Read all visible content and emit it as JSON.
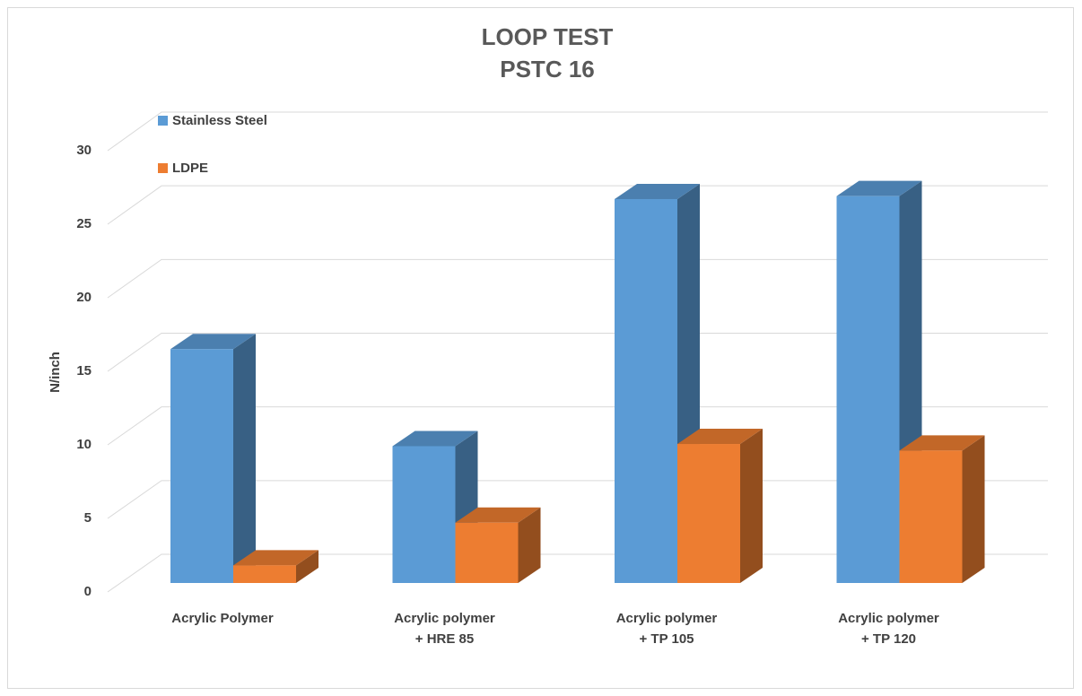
{
  "chart_data": {
    "type": "bar3d",
    "title": "LOOP TEST",
    "subtitle": "PSTC 16",
    "y_label": "N/inch",
    "categories": [
      [
        "Acrylic Polymer"
      ],
      [
        "Acrylic polymer",
        "+ HRE 85"
      ],
      [
        "Acrylic polymer",
        "+ TP 105"
      ],
      [
        "Acrylic polymer",
        "+ TP 120"
      ]
    ],
    "series": [
      {
        "name": "Stainless Steel",
        "color": "#5b9bd5",
        "values": [
          15.9,
          9.3,
          26.1,
          26.3
        ]
      },
      {
        "name": "LDPE",
        "color": "#ed7d31",
        "values": [
          1.2,
          4.1,
          9.45,
          9.0
        ]
      }
    ],
    "ylim": [
      0,
      30
    ],
    "yticks": [
      0,
      5,
      10,
      15,
      20,
      25,
      30
    ],
    "grid": true,
    "legend": "top-left"
  }
}
